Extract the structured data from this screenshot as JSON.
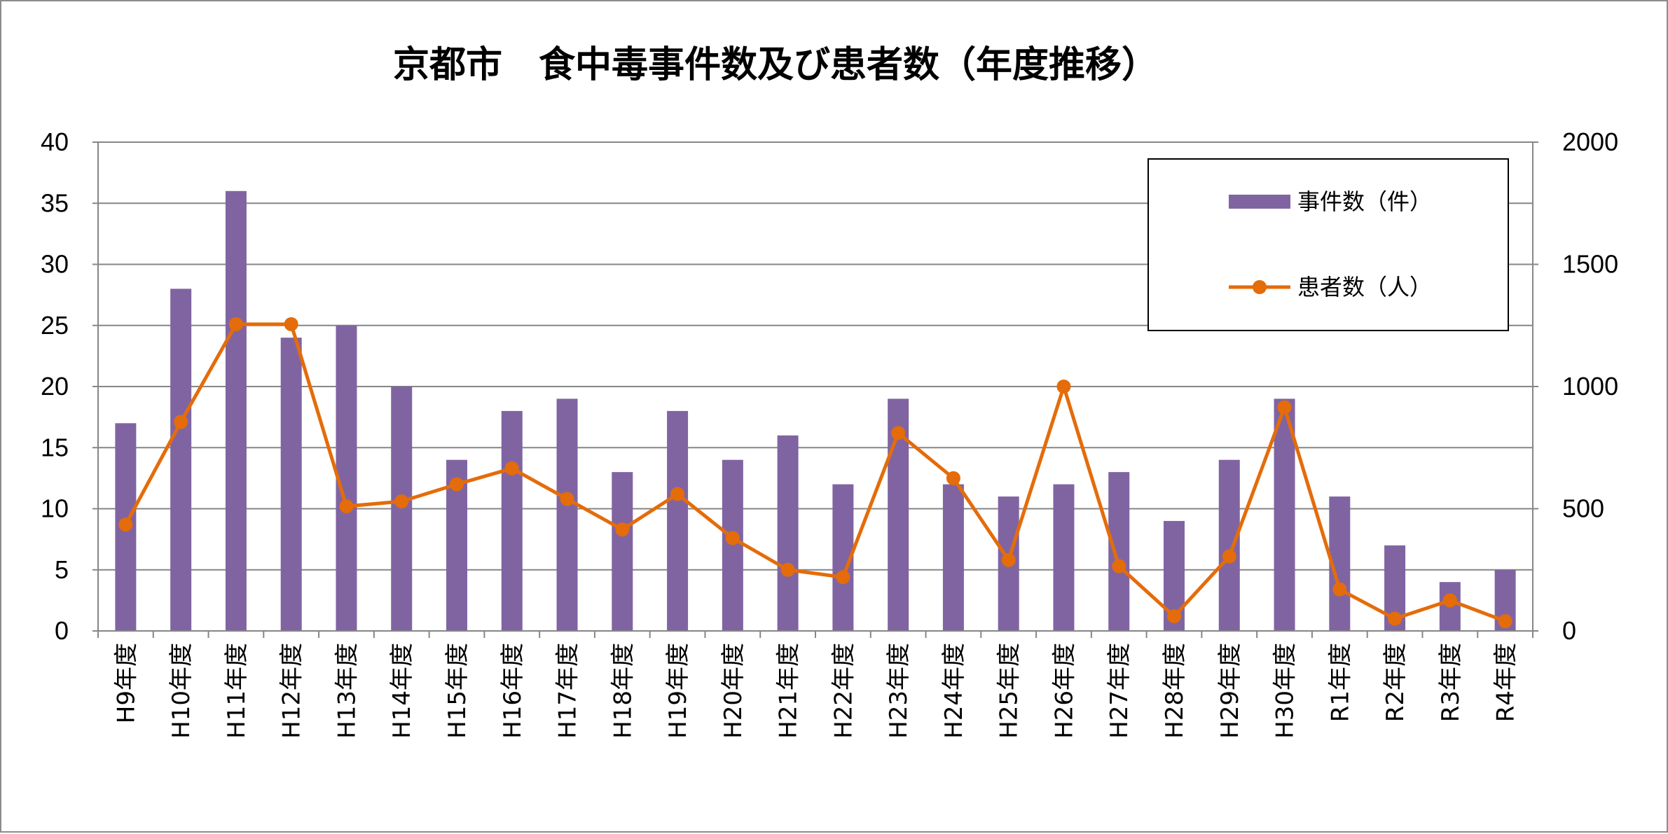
{
  "chart_data": {
    "type": "bar",
    "title": "京都市　食中毒事件数及び患者数（年度推移）",
    "categories": [
      "H9年度",
      "H10年度",
      "H11年度",
      "H12年度",
      "H13年度",
      "H14年度",
      "H15年度",
      "H16年度",
      "H17年度",
      "H18年度",
      "H19年度",
      "H20年度",
      "H21年度",
      "H22年度",
      "H23年度",
      "H24年度",
      "H25年度",
      "H26年度",
      "H27年度",
      "H28年度",
      "H29年度",
      "H30年度",
      "R1年度",
      "R2年度",
      "R3年度",
      "R4年度"
    ],
    "series": [
      {
        "name": "事件数（件）",
        "type": "bar",
        "axis": "left",
        "color": "#8064a2",
        "values": [
          17,
          28,
          36,
          24,
          25,
          20,
          14,
          18,
          19,
          13,
          18,
          14,
          16,
          12,
          19,
          12,
          11,
          12,
          13,
          9,
          14,
          19,
          11,
          7,
          4,
          5
        ]
      },
      {
        "name": "患者数（人）",
        "type": "line",
        "axis": "right",
        "color": "#e46c0a",
        "values": [
          435,
          855,
          1255,
          1255,
          510,
          530,
          600,
          665,
          540,
          415,
          560,
          380,
          250,
          220,
          810,
          625,
          290,
          1000,
          265,
          60,
          305,
          915,
          170,
          50,
          125,
          40
        ]
      }
    ],
    "y_left": {
      "range": [
        0,
        40
      ],
      "ticks": [
        "0",
        "5",
        "10",
        "15",
        "20",
        "25",
        "30",
        "35",
        "40"
      ]
    },
    "y_right": {
      "range": [
        0,
        2000
      ],
      "ticks": [
        "0",
        "500",
        "1000",
        "1500",
        "2000"
      ]
    },
    "grid": true,
    "legend_position": "top-right"
  }
}
